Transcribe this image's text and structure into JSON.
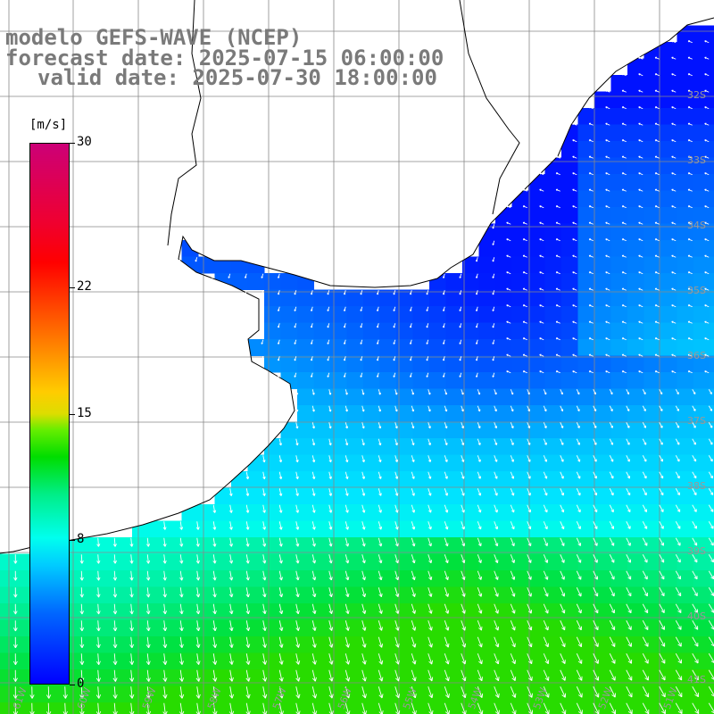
{
  "title": {
    "line1": "modelo GEFS-WAVE (NCEP)",
    "line2": "forecast date: 2025-07-15 06:00:00",
    "line3": "valid date: 2025-07-30 18:00:00"
  },
  "colorbar": {
    "unit": "[m/s]",
    "ticks": [
      {
        "label": "30",
        "value": 30
      },
      {
        "label": "22",
        "value": 22
      },
      {
        "label": "15",
        "value": 15
      },
      {
        "label": "8",
        "value": 8
      },
      {
        "label": "0",
        "value": 0
      }
    ],
    "min": 0,
    "max": 30
  },
  "map": {
    "lat_labels": [
      "32S",
      "33S",
      "34S",
      "35S",
      "36S",
      "37S",
      "38S",
      "39S",
      "40S",
      "41S"
    ],
    "lon_labels": [
      "61W",
      "60W",
      "59W",
      "58W",
      "57W",
      "56W",
      "55W",
      "54W",
      "53W",
      "52W",
      "51W"
    ],
    "colors": {
      "land": "#ffffff",
      "grid": "#888888",
      "coast": "#000000",
      "arrow": "#ffffff"
    },
    "variable": "wind speed and direction"
  }
}
